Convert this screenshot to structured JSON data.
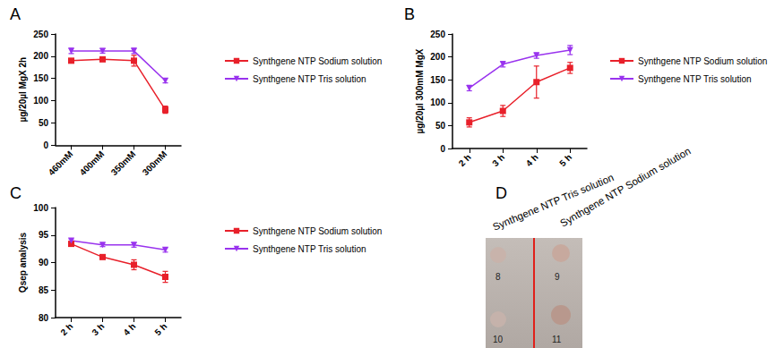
{
  "chart_data": [
    {
      "type": "line",
      "title": "A",
      "categories": [
        "460mM",
        "400mM",
        "350mM",
        "300mM"
      ],
      "y_label": "µg/20µl MgX 2h",
      "ylim": [
        0,
        250
      ],
      "yticks": [
        0,
        50,
        100,
        150,
        200,
        250
      ],
      "grid": false,
      "legend": "right",
      "series": [
        {
          "name": "Synthgene NTP Sodium solution",
          "color": "#e8202a",
          "marker": "square",
          "values": [
            190,
            193,
            190,
            80
          ],
          "errors": [
            4,
            4,
            12,
            8
          ]
        },
        {
          "name": "Synthgene NTP Tris solution",
          "color": "#9933ee",
          "marker": "triangle-down",
          "values": [
            212,
            212,
            212,
            145
          ],
          "errors": [
            6,
            5,
            6,
            5
          ]
        }
      ]
    },
    {
      "type": "line",
      "title": "B",
      "categories": [
        "2 h",
        "3 h",
        "4 h",
        "5 h"
      ],
      "y_label": "µg/20µl 300mM MgX",
      "ylim": [
        0,
        250
      ],
      "yticks": [
        0,
        50,
        100,
        150,
        200,
        250
      ],
      "grid": false,
      "legend": "right",
      "series": [
        {
          "name": "Synthgene NTP Sodium solution",
          "color": "#e8202a",
          "marker": "square",
          "values": [
            57,
            82,
            145,
            176
          ],
          "errors": [
            10,
            12,
            35,
            12
          ]
        },
        {
          "name": "Synthgene NTP Tris solution",
          "color": "#9933ee",
          "marker": "triangle-down",
          "values": [
            132,
            184,
            203,
            215
          ],
          "errors": [
            6,
            6,
            6,
            10
          ]
        }
      ]
    },
    {
      "type": "line",
      "title": "C",
      "categories": [
        "2 h",
        "3 h",
        "4 h",
        "5 h"
      ],
      "y_label": "Qsep analysis",
      "ylim": [
        80,
        100
      ],
      "yticks": [
        80,
        85,
        90,
        95,
        100
      ],
      "grid": false,
      "legend": "right",
      "series": [
        {
          "name": "Synthgene NTP Sodium solution",
          "color": "#e8202a",
          "marker": "square",
          "values": [
            93.4,
            91.0,
            89.6,
            87.4
          ],
          "errors": [
            0.3,
            0.3,
            0.9,
            1.0
          ]
        },
        {
          "name": "Synthgene NTP Tris solution",
          "color": "#9933ee",
          "marker": "triangle-down",
          "values": [
            94.0,
            93.2,
            93.2,
            92.3
          ],
          "errors": [
            0.3,
            0.3,
            0.4,
            0.4
          ]
        }
      ]
    }
  ],
  "photo": {
    "title": "D",
    "captions": [
      "Synthgene NTP Tris solution",
      "Synthgene NTP Sodium solution"
    ],
    "spot_labels": [
      [
        "8",
        "9"
      ],
      [
        "10",
        "11"
      ]
    ]
  }
}
